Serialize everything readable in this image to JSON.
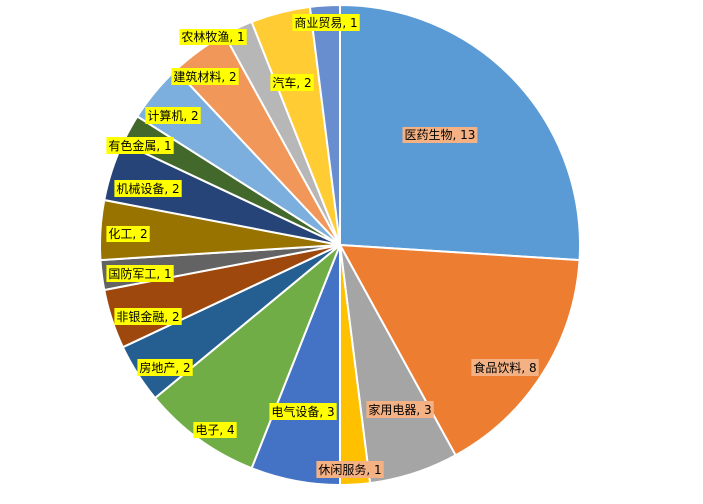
{
  "chart_data": {
    "type": "pie",
    "title": "",
    "slices": [
      {
        "label": "医药生物",
        "value": 13,
        "color": "#5B9BD5",
        "label_bg": "#F4B183",
        "display": "医药生物, 13"
      },
      {
        "label": "食品饮料",
        "value": 8,
        "color": "#ED7D31",
        "label_bg": "#F4B183",
        "display": "食品饮料, 8"
      },
      {
        "label": "家用电器",
        "value": 3,
        "color": "#A5A5A5",
        "label_bg": "#F4B183",
        "display": "家用电器, 3"
      },
      {
        "label": "休闲服务",
        "value": 1,
        "color": "#FFC000",
        "label_bg": "#F4B183",
        "display": "休闲服务, 1"
      },
      {
        "label": "电气设备",
        "value": 3,
        "color": "#4472C4",
        "label_bg": "#FFFF00",
        "display": "电气设备, 3"
      },
      {
        "label": "电子",
        "value": 4,
        "color": "#70AD47",
        "label_bg": "#FFFF00",
        "display": "电子, 4"
      },
      {
        "label": "房地产",
        "value": 2,
        "color": "#255E91",
        "label_bg": "#FFFF00",
        "display": "房地产, 2"
      },
      {
        "label": "非银金融",
        "value": 2,
        "color": "#9E480E",
        "label_bg": "#FFFF00",
        "display": "非银金融, 2"
      },
      {
        "label": "国防军工",
        "value": 1,
        "color": "#636363",
        "label_bg": "#FFFF00",
        "display": "国防军工, 1"
      },
      {
        "label": "化工",
        "value": 2,
        "color": "#997300",
        "label_bg": "#FFFF00",
        "display": "化工, 2"
      },
      {
        "label": "机械设备",
        "value": 2,
        "color": "#264478",
        "label_bg": "#FFFF00",
        "display": "机械设备, 2"
      },
      {
        "label": "有色金属",
        "value": 1,
        "color": "#43682B",
        "label_bg": "#FFFF00",
        "display": "有色金属, 1"
      },
      {
        "label": "计算机",
        "value": 2,
        "color": "#7CAFDD",
        "label_bg": "#FFFF00",
        "display": "计算机, 2"
      },
      {
        "label": "建筑材料",
        "value": 2,
        "color": "#F1975A",
        "label_bg": "#FFFF00",
        "display": "建筑材料, 2"
      },
      {
        "label": "农林牧渔",
        "value": 1,
        "color": "#B7B7B7",
        "label_bg": "#FFFF00",
        "display": "农林牧渔, 1"
      },
      {
        "label": "汽车",
        "value": 2,
        "color": "#FFCD33",
        "label_bg": "#FFFF00",
        "display": "汽车, 2"
      },
      {
        "label": "商业贸易",
        "value": 1,
        "color": "#698ED0",
        "label_bg": "#FFFF00",
        "display": "商业贸易, 1"
      }
    ],
    "start_angle_deg": 0,
    "direction": "clockwise",
    "legend": "none",
    "slice_border_color": "#ffffff"
  }
}
